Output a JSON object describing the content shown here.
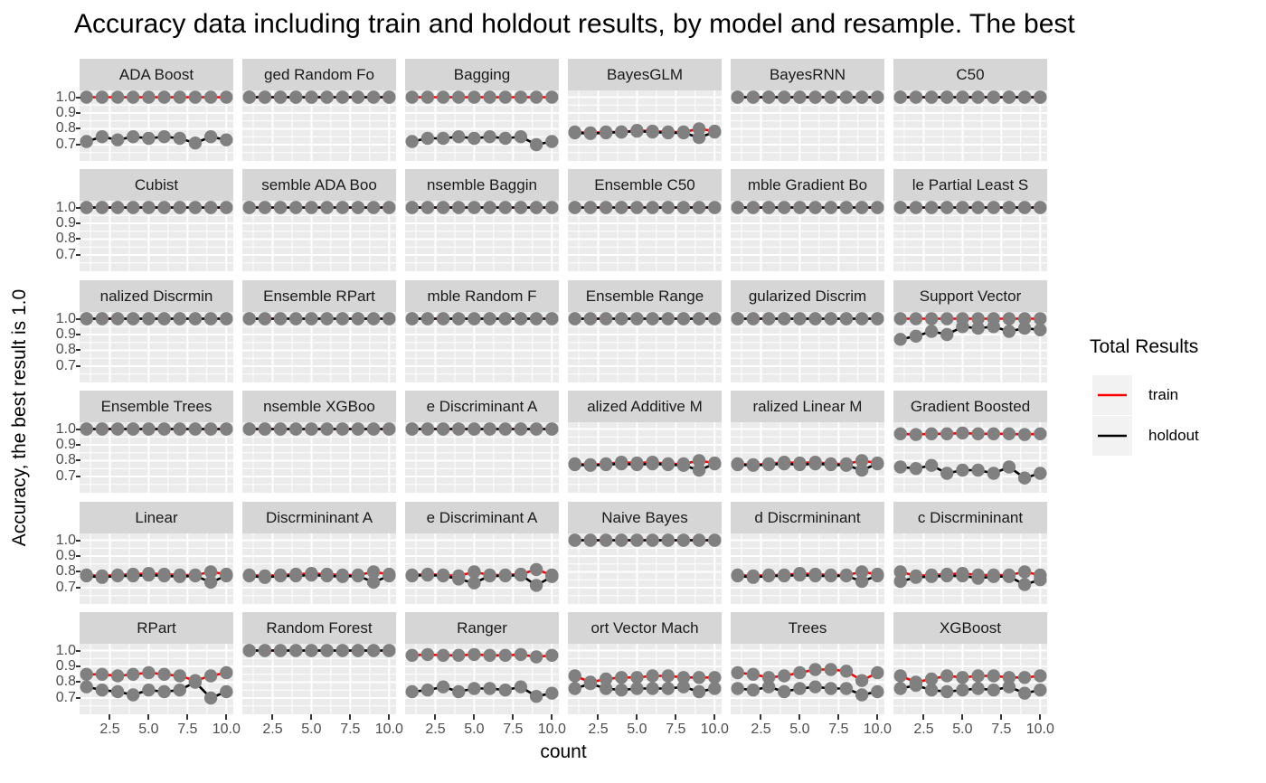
{
  "title": "Accuracy data including train and holdout results, by model and resample. The best",
  "axes": {
    "x_label": "count",
    "y_label": "Accuracy, the best result is 1.0",
    "x_ticks": [
      "2.5",
      "5.0",
      "7.5",
      "10.0"
    ],
    "y_ticks": [
      "1.0",
      "0.9",
      "0.8",
      "0.7"
    ]
  },
  "legend": {
    "title": "Total Results",
    "items": [
      {
        "label": "train",
        "color": "#ff0000"
      },
      {
        "label": "holdout",
        "color": "#000000"
      }
    ]
  },
  "style": {
    "panel_bg": "#ebebeb",
    "strip_bg": "#d6d6d6",
    "grid_color": "#ffffff",
    "point_color": "#808080",
    "axis_text_color": "#4d4d4d"
  },
  "chart_data": {
    "type": "line",
    "x": [
      1,
      2,
      3,
      4,
      5,
      6,
      7,
      8,
      9,
      10
    ],
    "x_tick_values": [
      2.5,
      5,
      7.5,
      10
    ],
    "y_tick_values": [
      1.0,
      0.9,
      0.8,
      0.7
    ],
    "x_minor": [
      1.25,
      3.75,
      6.25,
      8.75
    ],
    "y_minor": [
      0.65,
      0.75,
      0.85,
      0.95
    ],
    "x_domain": [
      0.55,
      10.45
    ],
    "y_domain": [
      0.597,
      1.043
    ],
    "series_names": [
      "train",
      "holdout"
    ],
    "facets": [
      {
        "label": "ADA Boost",
        "train": [
          1,
          1,
          1,
          1,
          1,
          1,
          1,
          1,
          1,
          1
        ],
        "holdout": [
          0.72,
          0.75,
          0.73,
          0.75,
          0.74,
          0.75,
          0.74,
          0.71,
          0.75,
          0.73
        ]
      },
      {
        "label": "ged Random Fo",
        "train": [
          1,
          1,
          1,
          1,
          1,
          1,
          1,
          1,
          1,
          1
        ],
        "holdout": [
          1,
          1,
          1,
          1,
          1,
          1,
          1,
          1,
          1,
          1
        ]
      },
      {
        "label": "Bagging",
        "train": [
          1,
          1,
          1,
          1,
          1,
          1,
          1,
          1,
          1,
          1
        ],
        "holdout": [
          0.72,
          0.74,
          0.74,
          0.75,
          0.74,
          0.75,
          0.74,
          0.75,
          0.7,
          0.72
        ]
      },
      {
        "label": "BayesGLM",
        "train": [
          0.78,
          0.775,
          0.78,
          0.78,
          0.79,
          0.785,
          0.78,
          0.78,
          0.8,
          0.785
        ],
        "holdout": [
          0.775,
          0.77,
          0.775,
          0.78,
          0.785,
          0.78,
          0.775,
          0.775,
          0.745,
          0.78
        ]
      },
      {
        "label": "BayesRNN",
        "train": [
          1,
          1,
          1,
          1,
          1,
          1,
          1,
          1,
          1,
          1
        ],
        "holdout": [
          1,
          1,
          1,
          1,
          1,
          1,
          1,
          1,
          1,
          1
        ]
      },
      {
        "label": "C50",
        "train": [
          1,
          1,
          1,
          1,
          1,
          1,
          1,
          1,
          1,
          1
        ],
        "holdout": [
          1,
          1,
          1,
          1,
          1,
          1,
          1,
          1,
          1,
          1
        ]
      },
      {
        "label": "Cubist",
        "train": [
          1,
          1,
          1,
          1,
          1,
          1,
          1,
          1,
          1,
          1
        ],
        "holdout": [
          1,
          1,
          1,
          1,
          1,
          1,
          1,
          1,
          1,
          1
        ]
      },
      {
        "label": "semble ADA Boo",
        "train": [
          1,
          1,
          1,
          1,
          1,
          1,
          1,
          1,
          1,
          1
        ],
        "holdout": [
          1,
          1,
          1,
          1,
          1,
          1,
          1,
          1,
          1,
          1
        ]
      },
      {
        "label": "nsemble Baggin",
        "train": [
          1,
          1,
          1,
          1,
          1,
          1,
          1,
          1,
          1,
          1
        ],
        "holdout": [
          1,
          1,
          1,
          1,
          1,
          1,
          1,
          1,
          1,
          1
        ]
      },
      {
        "label": "Ensemble C50",
        "train": [
          1,
          1,
          1,
          1,
          1,
          1,
          1,
          1,
          1,
          1
        ],
        "holdout": [
          1,
          1,
          1,
          1,
          1,
          1,
          1,
          1,
          1,
          1
        ]
      },
      {
        "label": "mble Gradient Bo",
        "train": [
          1,
          1,
          1,
          1,
          1,
          1,
          1,
          1,
          1,
          1
        ],
        "holdout": [
          1,
          1,
          1,
          1,
          1,
          1,
          1,
          1,
          1,
          1
        ]
      },
      {
        "label": "le Partial Least S",
        "train": [
          1,
          1,
          1,
          1,
          1,
          1,
          1,
          1,
          1,
          1
        ],
        "holdout": [
          1,
          1,
          1,
          1,
          1,
          1,
          1,
          1,
          1,
          1
        ]
      },
      {
        "label": "nalized Discrmin",
        "train": [
          1,
          1,
          1,
          1,
          1,
          1,
          1,
          1,
          1,
          1
        ],
        "holdout": [
          1,
          1,
          1,
          1,
          1,
          1,
          1,
          1,
          1,
          1
        ]
      },
      {
        "label": "Ensemble RPart",
        "train": [
          1,
          1,
          1,
          1,
          1,
          1,
          1,
          1,
          1,
          1
        ],
        "holdout": [
          1,
          1,
          1,
          1,
          1,
          1,
          1,
          1,
          1,
          1
        ]
      },
      {
        "label": "mble Random F",
        "train": [
          1,
          1,
          1,
          1,
          1,
          1,
          1,
          1,
          1,
          1
        ],
        "holdout": [
          1,
          1,
          1,
          1,
          1,
          1,
          1,
          1,
          1,
          1
        ]
      },
      {
        "label": "Ensemble Range",
        "train": [
          1,
          1,
          1,
          1,
          1,
          1,
          1,
          1,
          1,
          1
        ],
        "holdout": [
          1,
          1,
          1,
          1,
          1,
          1,
          1,
          1,
          1,
          1
        ]
      },
      {
        "label": "gularized Discrim",
        "train": [
          1,
          1,
          1,
          1,
          1,
          1,
          1,
          1,
          1,
          1
        ],
        "holdout": [
          1,
          1,
          1,
          1,
          1,
          1,
          1,
          1,
          1,
          1
        ]
      },
      {
        "label": "Support Vector",
        "train": [
          1,
          1,
          1,
          1,
          1,
          1,
          1,
          1,
          1,
          1
        ],
        "holdout": [
          0.87,
          0.89,
          0.92,
          0.9,
          0.95,
          0.94,
          0.95,
          0.92,
          0.94,
          0.93
        ]
      },
      {
        "label": "Ensemble Trees",
        "train": [
          1,
          1,
          1,
          1,
          1,
          1,
          1,
          1,
          1,
          1
        ],
        "holdout": [
          1,
          1,
          1,
          1,
          1,
          1,
          1,
          1,
          1,
          1
        ]
      },
      {
        "label": "nsemble XGBoo",
        "train": [
          1,
          1,
          1,
          1,
          1,
          1,
          1,
          1,
          1,
          1
        ],
        "holdout": [
          1,
          1,
          1,
          1,
          1,
          1,
          1,
          1,
          1,
          1
        ]
      },
      {
        "label": "e Discriminant A",
        "train": [
          1,
          1,
          1,
          1,
          1,
          1,
          1,
          1,
          1,
          1
        ],
        "holdout": [
          1,
          1,
          1,
          1,
          1,
          1,
          1,
          1,
          1,
          1
        ]
      },
      {
        "label": "alized Additive M",
        "train": [
          0.78,
          0.775,
          0.78,
          0.79,
          0.785,
          0.79,
          0.78,
          0.78,
          0.8,
          0.785
        ],
        "holdout": [
          0.775,
          0.77,
          0.775,
          0.78,
          0.775,
          0.78,
          0.775,
          0.77,
          0.74,
          0.78
        ]
      },
      {
        "label": "ralized Linear M",
        "train": [
          0.78,
          0.775,
          0.78,
          0.79,
          0.785,
          0.79,
          0.78,
          0.78,
          0.8,
          0.785
        ],
        "holdout": [
          0.775,
          0.77,
          0.775,
          0.78,
          0.775,
          0.78,
          0.775,
          0.77,
          0.74,
          0.78
        ]
      },
      {
        "label": "Gradient Boosted",
        "train": [
          0.97,
          0.965,
          0.97,
          0.97,
          0.975,
          0.97,
          0.97,
          0.97,
          0.965,
          0.97
        ],
        "holdout": [
          0.76,
          0.75,
          0.77,
          0.72,
          0.74,
          0.74,
          0.72,
          0.76,
          0.69,
          0.72
        ]
      },
      {
        "label": "Linear",
        "train": [
          0.78,
          0.775,
          0.78,
          0.785,
          0.79,
          0.785,
          0.78,
          0.78,
          0.8,
          0.785
        ],
        "holdout": [
          0.775,
          0.765,
          0.775,
          0.775,
          0.78,
          0.775,
          0.77,
          0.775,
          0.735,
          0.775
        ]
      },
      {
        "label": "Discrmininant A",
        "train": [
          0.78,
          0.775,
          0.78,
          0.785,
          0.79,
          0.785,
          0.78,
          0.78,
          0.8,
          0.785
        ],
        "holdout": [
          0.775,
          0.765,
          0.775,
          0.775,
          0.78,
          0.775,
          0.77,
          0.775,
          0.735,
          0.775
        ]
      },
      {
        "label": "e Discriminant A",
        "train": [
          0.78,
          0.785,
          0.78,
          0.775,
          0.8,
          0.78,
          0.78,
          0.785,
          0.815,
          0.78
        ],
        "holdout": [
          0.775,
          0.78,
          0.775,
          0.755,
          0.73,
          0.775,
          0.775,
          0.78,
          0.715,
          0.77
        ]
      },
      {
        "label": "Naive Bayes",
        "train": [
          1,
          1,
          1,
          1,
          1,
          1,
          1,
          1,
          1,
          1
        ],
        "holdout": [
          1,
          1,
          1,
          1,
          1,
          1,
          1,
          1,
          1,
          1
        ]
      },
      {
        "label": "d Discrmininant",
        "train": [
          0.78,
          0.775,
          0.78,
          0.78,
          0.79,
          0.785,
          0.78,
          0.78,
          0.8,
          0.785
        ],
        "holdout": [
          0.775,
          0.765,
          0.775,
          0.775,
          0.78,
          0.775,
          0.775,
          0.775,
          0.74,
          0.775
        ]
      },
      {
        "label": "c Discrmininant",
        "train": [
          0.8,
          0.775,
          0.78,
          0.785,
          0.79,
          0.78,
          0.78,
          0.78,
          0.8,
          0.78
        ],
        "holdout": [
          0.74,
          0.765,
          0.77,
          0.775,
          0.775,
          0.76,
          0.77,
          0.77,
          0.72,
          0.75
        ]
      },
      {
        "label": "RPart",
        "train": [
          0.85,
          0.85,
          0.84,
          0.85,
          0.86,
          0.85,
          0.84,
          0.81,
          0.84,
          0.86
        ],
        "holdout": [
          0.77,
          0.75,
          0.74,
          0.72,
          0.75,
          0.74,
          0.75,
          0.8,
          0.7,
          0.74
        ]
      },
      {
        "label": "Random Forest",
        "train": [
          1,
          1,
          1,
          1,
          1,
          1,
          1,
          1,
          1,
          1
        ],
        "holdout": [
          1,
          1,
          1,
          1,
          1,
          1,
          1,
          1,
          1,
          1
        ]
      },
      {
        "label": "Ranger",
        "train": [
          0.97,
          0.975,
          0.97,
          0.97,
          0.975,
          0.97,
          0.97,
          0.975,
          0.96,
          0.97
        ],
        "holdout": [
          0.74,
          0.75,
          0.77,
          0.74,
          0.76,
          0.76,
          0.75,
          0.77,
          0.71,
          0.73
        ]
      },
      {
        "label": "ort Vector Mach",
        "train": [
          0.84,
          0.8,
          0.82,
          0.83,
          0.83,
          0.84,
          0.84,
          0.83,
          0.83,
          0.83
        ],
        "holdout": [
          0.76,
          0.79,
          0.76,
          0.75,
          0.76,
          0.76,
          0.76,
          0.77,
          0.74,
          0.76
        ]
      },
      {
        "label": "Trees",
        "train": [
          0.86,
          0.85,
          0.83,
          0.84,
          0.86,
          0.88,
          0.88,
          0.87,
          0.81,
          0.86
        ],
        "holdout": [
          0.76,
          0.75,
          0.77,
          0.74,
          0.76,
          0.77,
          0.76,
          0.76,
          0.72,
          0.74
        ]
      },
      {
        "label": "XGBoost",
        "train": [
          0.84,
          0.8,
          0.82,
          0.84,
          0.83,
          0.84,
          0.84,
          0.83,
          0.83,
          0.84
        ],
        "holdout": [
          0.76,
          0.78,
          0.75,
          0.74,
          0.75,
          0.76,
          0.75,
          0.77,
          0.73,
          0.75
        ]
      }
    ]
  }
}
